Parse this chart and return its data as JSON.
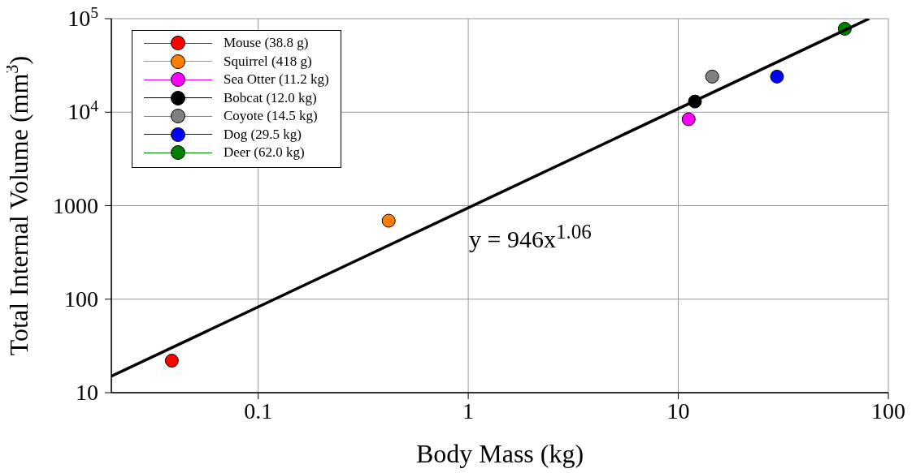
{
  "chart_data": {
    "type": "scatter",
    "xlabel": "Body Mass (kg)",
    "ylabel": "Total Internal Volume (mm$^{3}$)",
    "log": "xy",
    "grid": true,
    "legend": "top left",
    "marker": "circle",
    "xlim": [
      0.02,
      100
    ],
    "xticks": [
      0.1,
      1,
      10,
      100
    ],
    "ylim": [
      10,
      100000
    ],
    "yticks": [
      10,
      100,
      1000,
      {
        "value": 10000,
        "label": "10$^{4}$"
      },
      {
        "value": 100000,
        "label": "10$^{5}$"
      }
    ],
    "annotations": [
      "y = 946x$^{1.06}$"
    ],
    "series": [
      {
        "name": "Mouse (38.8 g)",
        "color": "#ff0000",
        "x": [
          0.0388
        ],
        "values": [
          22
        ]
      },
      {
        "name": "Squirrel (418 g)",
        "color": "#ff8000",
        "x": [
          0.418
        ],
        "values": [
          690
        ]
      },
      {
        "name": "Sea Otter (11.2 kg)",
        "color": "#ff00ff",
        "x": [
          11.2
        ],
        "values": [
          8400
        ]
      },
      {
        "name": "Bobcat (12.0 kg)",
        "color": "#000000",
        "x": [
          12.0
        ],
        "values": [
          13000
        ]
      },
      {
        "name": "Coyote (14.5 kg)",
        "color": "#808080",
        "x": [
          14.5
        ],
        "values": [
          24000
        ]
      },
      {
        "name": "Dog (29.5 kg)",
        "color": "#0000ff",
        "x": [
          29.5
        ],
        "values": [
          24000
        ]
      },
      {
        "name": "Deer (62.0 kg)",
        "color": "#008000",
        "x": [
          62.0
        ],
        "values": [
          78000
        ]
      },
      {
        "type": "line",
        "marker": "none",
        "color": "#000000",
        "x": [
          0.02,
          81
        ],
        "values": [
          15,
          100000
        ]
      }
    ]
  }
}
